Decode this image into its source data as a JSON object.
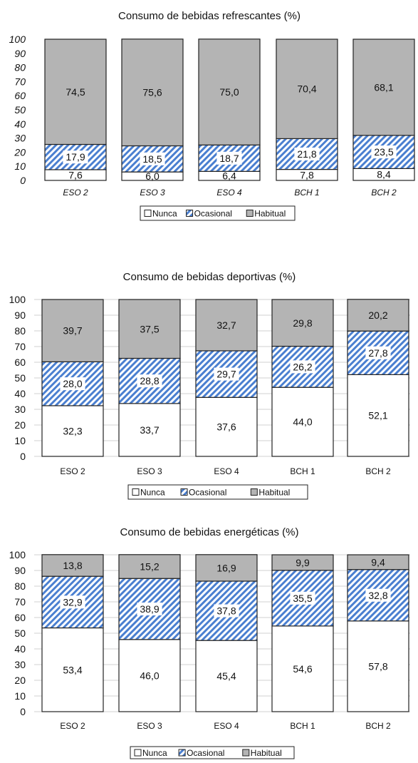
{
  "charts": [
    {
      "type": "bar",
      "stacked": true,
      "title": "Consumo de bebidas refrescantes (%)",
      "categories": [
        "ESO 2",
        "ESO 3",
        "ESO 4",
        "BCH 1",
        "BCH 2"
      ],
      "series": [
        {
          "name": "Nunca",
          "values": [
            7.6,
            6.0,
            6.4,
            7.8,
            8.4
          ],
          "labels": [
            "7,6",
            "6,0",
            "6,4",
            "7,8",
            "8,4"
          ],
          "pattern": "solid-white"
        },
        {
          "name": "Ocasional",
          "values": [
            17.9,
            18.5,
            18.7,
            21.8,
            23.5
          ],
          "labels": [
            "17,9",
            "18,5",
            "18,7",
            "21,8",
            "23,5"
          ],
          "pattern": "blue-hatch"
        },
        {
          "name": "Habitual",
          "values": [
            74.5,
            75.6,
            75.0,
            70.4,
            68.1
          ],
          "labels": [
            "74,5",
            "75,6",
            "75,0",
            "70,4",
            "68,1"
          ],
          "pattern": "solid-gray"
        }
      ],
      "ylim": [
        0,
        100
      ],
      "yticks": [
        "0",
        "10",
        "20",
        "30",
        "40",
        "50",
        "60",
        "70",
        "80",
        "90",
        "100"
      ],
      "italic_ticks": true,
      "grid": false,
      "legend_position": "bottom"
    },
    {
      "type": "bar",
      "stacked": true,
      "title": "Consumo de bebidas deportivas (%)",
      "categories": [
        "ESO 2",
        "ESO 3",
        "ESO 4",
        "BCH 1",
        "BCH 2"
      ],
      "series": [
        {
          "name": "Nunca",
          "values": [
            32.3,
            33.7,
            37.6,
            44.0,
            52.1
          ],
          "labels": [
            "32,3",
            "33,7",
            "37,6",
            "44,0",
            "52,1"
          ],
          "pattern": "solid-white"
        },
        {
          "name": "Ocasional",
          "values": [
            28.0,
            28.8,
            29.7,
            26.2,
            27.8
          ],
          "labels": [
            "28,0",
            "28,8",
            "29,7",
            "26,2",
            "27,8"
          ],
          "pattern": "blue-hatch"
        },
        {
          "name": "Habitual",
          "values": [
            39.7,
            37.5,
            32.7,
            29.8,
            20.2
          ],
          "labels": [
            "39,7",
            "37,5",
            "32,7",
            "29,8",
            "20,2"
          ],
          "pattern": "solid-gray"
        }
      ],
      "ylim": [
        0,
        100
      ],
      "yticks": [
        "0",
        "10",
        "20",
        "30",
        "40",
        "50",
        "60",
        "70",
        "80",
        "90",
        "100"
      ],
      "italic_ticks": false,
      "grid": true,
      "legend_position": "bottom"
    },
    {
      "type": "bar",
      "stacked": true,
      "title": "Consumo de bebidas energéticas (%)",
      "categories": [
        "ESO 2",
        "ESO 3",
        "ESO 4",
        "BCH 1",
        "BCH 2"
      ],
      "series": [
        {
          "name": "Nunca",
          "values": [
            53.4,
            46.0,
            45.4,
            54.6,
            57.8
          ],
          "labels": [
            "53,4",
            "46,0",
            "45,4",
            "54,6",
            "57,8"
          ],
          "pattern": "solid-white"
        },
        {
          "name": "Ocasional",
          "values": [
            32.9,
            38.9,
            37.8,
            35.5,
            32.8
          ],
          "labels": [
            "32,9",
            "38,9",
            "37,8",
            "35,5",
            "32,8"
          ],
          "pattern": "blue-hatch"
        },
        {
          "name": "Habitual",
          "values": [
            13.8,
            15.2,
            16.9,
            9.9,
            9.4
          ],
          "labels": [
            "13,8",
            "15,2",
            "16,9",
            "9,9",
            "9,4"
          ],
          "pattern": "solid-gray"
        }
      ],
      "ylim": [
        0,
        100
      ],
      "yticks": [
        "0",
        "10",
        "20",
        "30",
        "40",
        "50",
        "60",
        "70",
        "80",
        "90",
        "100"
      ],
      "italic_ticks": false,
      "grid": true,
      "legend_position": "bottom"
    }
  ],
  "colors": {
    "nunca": "#ffffff",
    "ocasional": "#4a7fd0",
    "habitual": "#b4b4b4",
    "bar_outline": "#222222",
    "grid": "#d0d0d0",
    "text": "#111111"
  }
}
